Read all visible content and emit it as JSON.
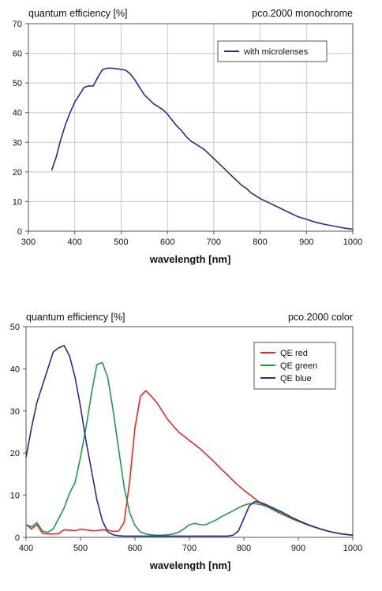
{
  "chart_data": [
    {
      "type": "line",
      "title_left": "quantum efficiency [%]",
      "title_right": "pco.2000 monochrome",
      "xlabel": "wavelength [nm]",
      "ylabel": "",
      "xlim": [
        300,
        1000
      ],
      "ylim": [
        0,
        70
      ],
      "x_ticks": [
        300,
        400,
        500,
        600,
        700,
        800,
        900,
        1000
      ],
      "y_ticks": [
        0,
        10,
        20,
        30,
        40,
        50,
        60,
        70
      ],
      "grid": true,
      "legend_position": "top-right",
      "series": [
        {
          "name": "with microlenses",
          "color": "#2b2b8c",
          "x": [
            350,
            360,
            370,
            380,
            390,
            400,
            410,
            420,
            430,
            440,
            450,
            460,
            470,
            480,
            490,
            500,
            510,
            520,
            530,
            540,
            550,
            560,
            570,
            580,
            590,
            600,
            610,
            620,
            630,
            640,
            650,
            660,
            670,
            680,
            690,
            700,
            710,
            720,
            730,
            740,
            750,
            760,
            770,
            780,
            790,
            800,
            820,
            840,
            860,
            880,
            900,
            920,
            940,
            960,
            980,
            1000
          ],
          "y": [
            20.5,
            25,
            31,
            36,
            40,
            43.5,
            46,
            48.5,
            49,
            49,
            52,
            54.5,
            55,
            55,
            54.8,
            54.6,
            54.3,
            53,
            51,
            48.5,
            46,
            44.5,
            43,
            42,
            41,
            39.5,
            37.5,
            35.5,
            34,
            32,
            30.5,
            29.5,
            28.5,
            27.5,
            26,
            24.5,
            23,
            21.5,
            20,
            18.5,
            17,
            15.5,
            14.5,
            13,
            12,
            11,
            9.5,
            8,
            6.5,
            5,
            4,
            3,
            2.3,
            1.7,
            1.1,
            0.7
          ]
        }
      ]
    },
    {
      "type": "line",
      "title_left": "quantum efficiency [%]",
      "title_right": "pco.2000 color",
      "xlabel": "wavelength [nm]",
      "ylabel": "",
      "xlim": [
        400,
        1000
      ],
      "ylim": [
        0,
        50
      ],
      "x_ticks": [
        400,
        500,
        600,
        700,
        800,
        900,
        1000
      ],
      "y_ticks": [
        0,
        10,
        20,
        30,
        40,
        50
      ],
      "grid": false,
      "legend_position": "top-right",
      "series": [
        {
          "name": "QE red",
          "color": "#e8281e",
          "x": [
            400,
            410,
            420,
            430,
            440,
            450,
            460,
            470,
            480,
            490,
            500,
            510,
            520,
            530,
            540,
            550,
            560,
            570,
            580,
            590,
            600,
            610,
            620,
            630,
            640,
            650,
            660,
            670,
            680,
            690,
            700,
            710,
            720,
            730,
            740,
            750,
            760,
            770,
            780,
            790,
            800,
            810,
            820,
            830,
            840,
            850,
            860,
            870,
            880,
            890,
            900,
            920,
            940,
            960,
            980,
            1000
          ],
          "y": [
            3,
            2,
            3,
            1,
            0.8,
            0.8,
            0.9,
            1.8,
            1.7,
            1.6,
            1.9,
            1.8,
            1.6,
            1.6,
            1.8,
            1.7,
            1.4,
            1.5,
            3.5,
            13,
            26,
            33.5,
            34.8,
            33.5,
            32,
            30,
            28,
            26.5,
            25,
            24,
            23,
            22,
            21,
            19.8,
            18.6,
            17.3,
            16,
            14.8,
            13.5,
            12.3,
            11.2,
            10.2,
            9.2,
            8.2,
            7.5,
            6.8,
            6.1,
            5.5,
            4.9,
            4.3,
            3.8,
            2.8,
            2,
            1.3,
            0.8,
            0.5
          ]
        },
        {
          "name": "QE green",
          "color": "#1f9a48",
          "x": [
            400,
            410,
            420,
            430,
            440,
            450,
            460,
            470,
            480,
            490,
            500,
            510,
            520,
            530,
            540,
            550,
            560,
            570,
            580,
            590,
            600,
            610,
            620,
            630,
            640,
            650,
            660,
            670,
            680,
            690,
            700,
            710,
            720,
            730,
            740,
            750,
            760,
            770,
            780,
            790,
            800,
            810,
            820,
            830,
            840,
            850,
            860,
            870,
            880,
            890,
            900,
            920,
            940,
            960,
            980,
            1000
          ],
          "y": [
            3,
            2.5,
            3.5,
            1.5,
            1.2,
            2,
            4.5,
            7,
            10.5,
            13,
            19,
            26,
            34,
            41,
            41.5,
            38,
            30,
            21,
            12,
            6,
            2.8,
            1.3,
            0.8,
            0.6,
            0.5,
            0.5,
            0.6,
            0.8,
            1.2,
            2,
            3,
            3.3,
            3,
            3,
            3.6,
            4.2,
            5,
            5.6,
            6.3,
            7,
            7.6,
            8,
            8,
            7.8,
            7.4,
            6.9,
            6.3,
            5.6,
            5,
            4.4,
            3.9,
            2.9,
            2,
            1.3,
            0.8,
            0.5
          ]
        },
        {
          "name": "QE blue",
          "color": "#2b2b8c",
          "x": [
            400,
            410,
            420,
            430,
            440,
            450,
            460,
            470,
            480,
            490,
            500,
            510,
            520,
            530,
            540,
            550,
            560,
            570,
            580,
            590,
            600,
            610,
            620,
            630,
            640,
            650,
            660,
            670,
            680,
            690,
            700,
            710,
            720,
            730,
            740,
            750,
            760,
            770,
            780,
            790,
            800,
            810,
            820,
            830,
            840,
            850,
            860,
            870,
            880,
            890,
            900,
            920,
            940,
            960,
            980,
            1000
          ],
          "y": [
            19,
            26,
            32,
            36,
            40,
            44,
            45,
            45.5,
            43,
            38,
            31,
            23,
            16,
            9,
            4,
            1.3,
            0.6,
            0.4,
            0.3,
            0.3,
            0.3,
            0.3,
            0.3,
            0.3,
            0.3,
            0.3,
            0.3,
            0.3,
            0.3,
            0.3,
            0.3,
            0.3,
            0.3,
            0.3,
            0.3,
            0.3,
            0.3,
            0.3,
            0.5,
            1.5,
            4.5,
            7.5,
            8.5,
            8.3,
            7.8,
            7.2,
            6.6,
            6,
            5.3,
            4.6,
            4,
            2.9,
            2,
            1.3,
            0.8,
            0.5
          ]
        }
      ]
    }
  ]
}
